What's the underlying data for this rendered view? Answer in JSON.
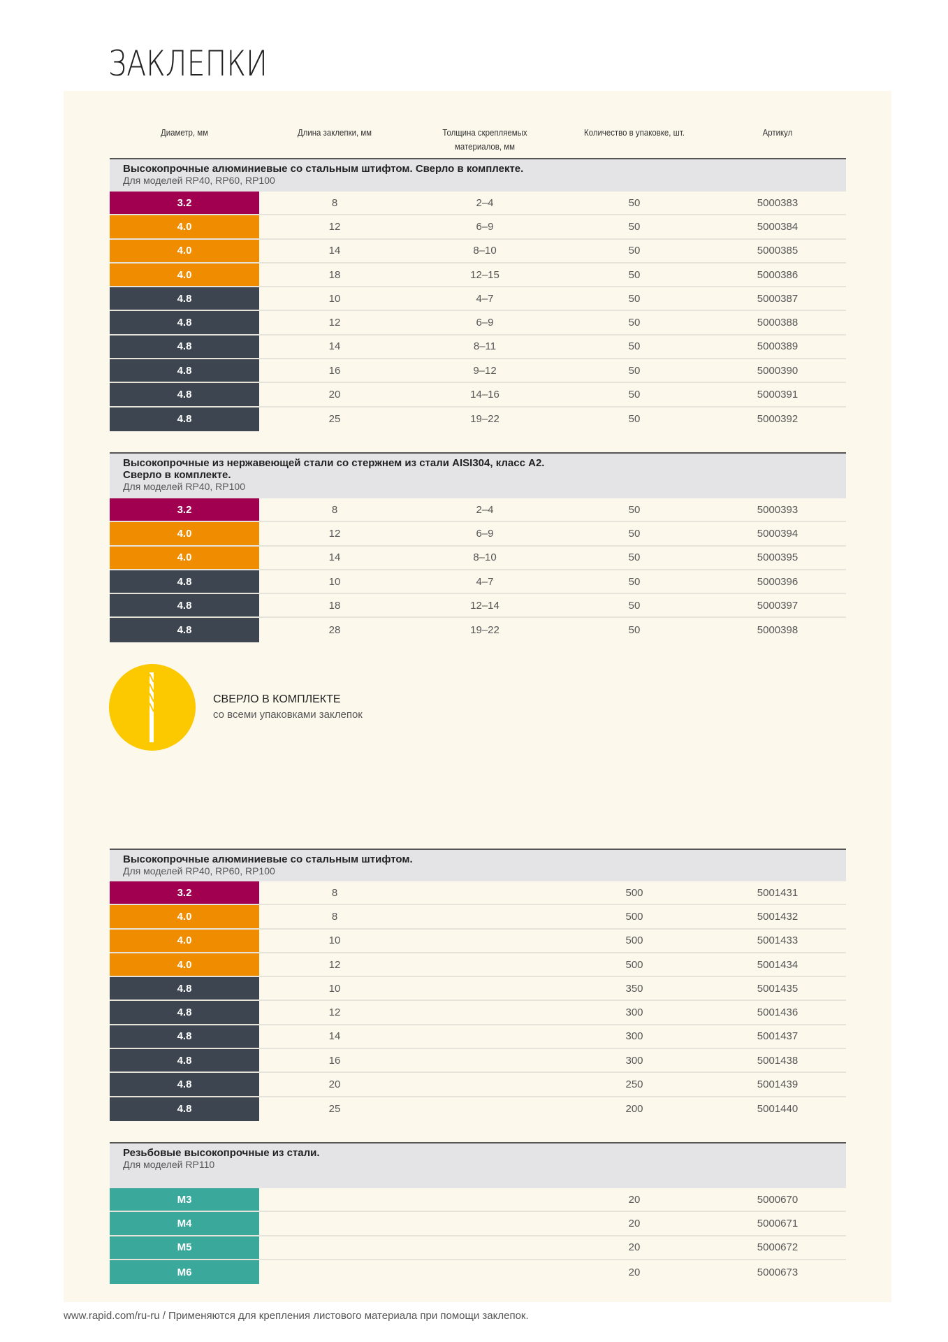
{
  "title": "ЗАКЛЕПКИ",
  "columns": [
    "Диаметр, мм",
    "Длина заклепки, мм",
    "Толщина скрепляемых материалов, мм",
    "Количество в упаковке, шт.",
    "Артикул"
  ],
  "colors": {
    "3.2": "#a0004f",
    "4.0": "#f08c00",
    "4.8": "#3d4650",
    "M": "#3aa89a",
    "drill_badge": "#fcc800",
    "panel": "#fdf8ec"
  },
  "sections": [
    {
      "title": "Высокопрочные алюминиевые со стальным штифтом. Сверло в комплекте.",
      "subtitle": "Для моделей RP40, RP60, RP100",
      "rows": [
        [
          "3.2",
          "8",
          "2–4",
          "50",
          "5000383"
        ],
        [
          "4.0",
          "12",
          "6–9",
          "50",
          "5000384"
        ],
        [
          "4.0",
          "14",
          "8–10",
          "50",
          "5000385"
        ],
        [
          "4.0",
          "18",
          "12–15",
          "50",
          "5000386"
        ],
        [
          "4.8",
          "10",
          "4–7",
          "50",
          "5000387"
        ],
        [
          "4.8",
          "12",
          "6–9",
          "50",
          "5000388"
        ],
        [
          "4.8",
          "14",
          "8–11",
          "50",
          "5000389"
        ],
        [
          "4.8",
          "16",
          "9–12",
          "50",
          "5000390"
        ],
        [
          "4.8",
          "20",
          "14–16",
          "50",
          "5000391"
        ],
        [
          "4.8",
          "25",
          "19–22",
          "50",
          "5000392"
        ]
      ]
    },
    {
      "title": "Высокопрочные из нержавеющей стали со стержнем из стали AISI304, класс A2. Сверло в комплекте.",
      "subtitle": "Для моделей RP40, RP100",
      "rows": [
        [
          "3.2",
          "8",
          "2–4",
          "50",
          "5000393"
        ],
        [
          "4.0",
          "12",
          "6–9",
          "50",
          "5000394"
        ],
        [
          "4.0",
          "14",
          "8–10",
          "50",
          "5000395"
        ],
        [
          "4.8",
          "10",
          "4–7",
          "50",
          "5000396"
        ],
        [
          "4.8",
          "18",
          "12–14",
          "50",
          "5000397"
        ],
        [
          "4.8",
          "28",
          "19–22",
          "50",
          "5000398"
        ]
      ]
    },
    {
      "title": "Высокопрочные алюминиевые со стальным штифтом.",
      "subtitle": "Для моделей RP40, RP60, RP100",
      "rows": [
        [
          "3.2",
          "8",
          "",
          "500",
          "5001431"
        ],
        [
          "4.0",
          "8",
          "",
          "500",
          "5001432"
        ],
        [
          "4.0",
          "10",
          "",
          "500",
          "5001433"
        ],
        [
          "4.0",
          "12",
          "",
          "500",
          "5001434"
        ],
        [
          "4.8",
          "10",
          "",
          "350",
          "5001435"
        ],
        [
          "4.8",
          "12",
          "",
          "300",
          "5001436"
        ],
        [
          "4.8",
          "14",
          "",
          "300",
          "5001437"
        ],
        [
          "4.8",
          "16",
          "",
          "300",
          "5001438"
        ],
        [
          "4.8",
          "20",
          "",
          "250",
          "5001439"
        ],
        [
          "4.8",
          "25",
          "",
          "200",
          "5001440"
        ]
      ]
    },
    {
      "title": "Резьбовые высокопрочные из стали.",
      "subtitle": "Для моделей RP110",
      "rows": [
        [
          "M3",
          "",
          "",
          "20",
          "5000670"
        ],
        [
          "M4",
          "",
          "",
          "20",
          "5000671"
        ],
        [
          "M5",
          "",
          "",
          "20",
          "5000672"
        ],
        [
          "M6",
          "",
          "",
          "20",
          "5000673"
        ]
      ]
    }
  ],
  "badge": {
    "icon": "drill-bit-icon",
    "title": "СВЕРЛО В КОМПЛЕКТЕ",
    "subtitle": "со всеми упаковками заклепок"
  },
  "footer": "www.rapid.com/ru-ru  /  Применяются для крепления листового материала при помощи заклепок."
}
